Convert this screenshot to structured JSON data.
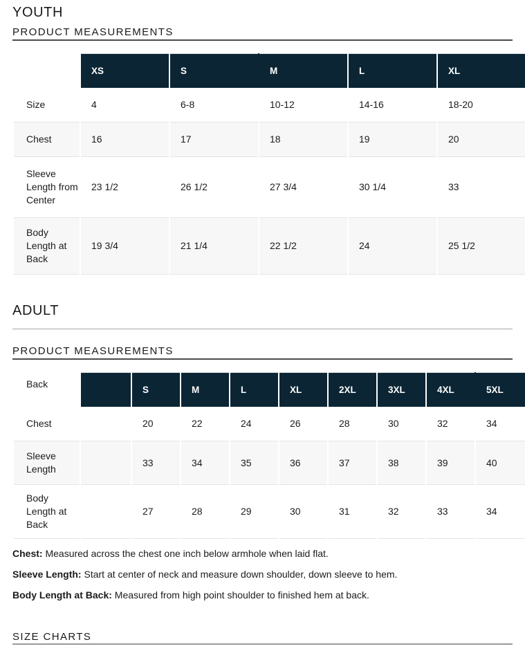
{
  "colors": {
    "navy": "#0b2534",
    "shade": "#f7f7f7",
    "rowline": "#e4e4e4",
    "hdrtop": "#dddddd",
    "rule-dark": "#4a4a4a",
    "rule-light": "#a6a6a6",
    "rule-footer": "#9a9a9a",
    "text": "#1b1b1b"
  },
  "youth": {
    "heading": "YOUTH",
    "section_title": "PRODUCT MEASUREMENTS",
    "table": {
      "columns": [
        "XS",
        "S",
        "M",
        "L",
        "XL"
      ],
      "rows": [
        {
          "label": "Size",
          "values": [
            "4",
            "6-8",
            "10-12",
            "14-16",
            "18-20"
          ]
        },
        {
          "label": "Chest",
          "values": [
            "16",
            "17",
            "18",
            "19",
            "20"
          ]
        },
        {
          "label": "Sleeve Length from Center",
          "values": [
            "23 1/2",
            "26 1/2",
            "27 3/4",
            "30 1/4",
            "33"
          ]
        },
        {
          "label": "Body Length at Back",
          "values": [
            "19 3/4",
            "21 1/4",
            "22 1/2",
            "24",
            "25 1/2"
          ]
        }
      ]
    }
  },
  "adult": {
    "heading": "ADULT",
    "section_title": "PRODUCT MEASUREMENTS",
    "table": {
      "corner_label": "Back",
      "columns": [
        "S",
        "M",
        "L",
        "XL",
        "2XL",
        "3XL",
        "4XL",
        "5XL"
      ],
      "rows": [
        {
          "label": "Chest",
          "values": [
            "20",
            "22",
            "24",
            "26",
            "28",
            "30",
            "32",
            "34"
          ]
        },
        {
          "label": "Sleeve Length",
          "values": [
            "33",
            "34",
            "35",
            "36",
            "37",
            "38",
            "39",
            "40"
          ]
        },
        {
          "label": "Body Length at Back",
          "values": [
            "27",
            "28",
            "29",
            "30",
            "31",
            "32",
            "33",
            "34"
          ]
        }
      ]
    }
  },
  "notes": [
    {
      "term": "Chest:",
      "text": "Measured across the chest one inch below armhole when laid flat."
    },
    {
      "term": "Sleeve Length:",
      "text": "Start at center of neck and measure down shoulder, down sleeve to hem."
    },
    {
      "term": "Body Length at Back:",
      "text": "Measured from high point shoulder to finished hem at back."
    }
  ],
  "footer": {
    "section_title": "SIZE CHARTS"
  }
}
